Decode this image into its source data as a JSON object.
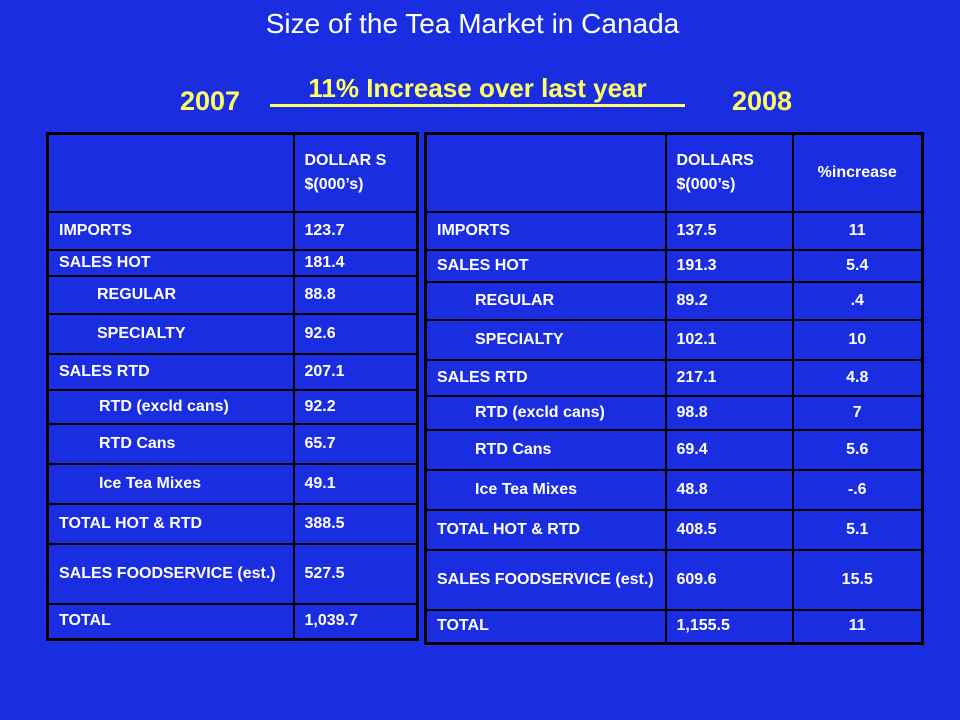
{
  "title": "Size of the Tea Market in Canada",
  "subtitle": "11% Increase over last year",
  "year_left": "2007",
  "year_right": "2008",
  "colors": {
    "background": "#1b2de0",
    "accent": "#ffff66",
    "text": "#ffffff",
    "border": "#000000"
  },
  "table_2007": {
    "headers": [
      "",
      "DOLLAR S $(000’s)"
    ],
    "rows": [
      [
        "IMPORTS",
        "123.7"
      ],
      [
        "SALES HOT",
        "181.4"
      ],
      [
        "REGULAR",
        "88.8"
      ],
      [
        "SPECIALTY",
        "92.6"
      ],
      [
        "SALES RTD",
        "207.1"
      ],
      [
        "RTD (excld cans)",
        "92.2"
      ],
      [
        "RTD Cans",
        "65.7"
      ],
      [
        "Ice Tea Mixes",
        "49.1"
      ],
      [
        "TOTAL HOT & RTD",
        "388.5"
      ],
      [
        "SALES FOODSERVICE (est.)",
        "527.5"
      ],
      [
        "TOTAL",
        "1,039.7"
      ]
    ]
  },
  "table_2008": {
    "headers": [
      "",
      "DOLLARS $(000’s)",
      "%increase"
    ],
    "rows": [
      [
        "IMPORTS",
        "137.5",
        "11"
      ],
      [
        "SALES HOT",
        "191.3",
        "5.4"
      ],
      [
        "REGULAR",
        "89.2",
        ".4"
      ],
      [
        "SPECIALTY",
        "102.1",
        "10"
      ],
      [
        "SALES RTD",
        "217.1",
        "4.8"
      ],
      [
        "RTD (excld cans)",
        "98.8",
        "7"
      ],
      [
        "RTD Cans",
        "69.4",
        "5.6"
      ],
      [
        "Ice Tea Mixes",
        "48.8",
        "-.6"
      ],
      [
        "TOTAL HOT & RTD",
        "408.5",
        "5.1"
      ],
      [
        "SALES FOODSERVICE (est.)",
        "609.6",
        "15.5"
      ],
      [
        "TOTAL",
        "1,155.5",
        "11"
      ]
    ]
  }
}
